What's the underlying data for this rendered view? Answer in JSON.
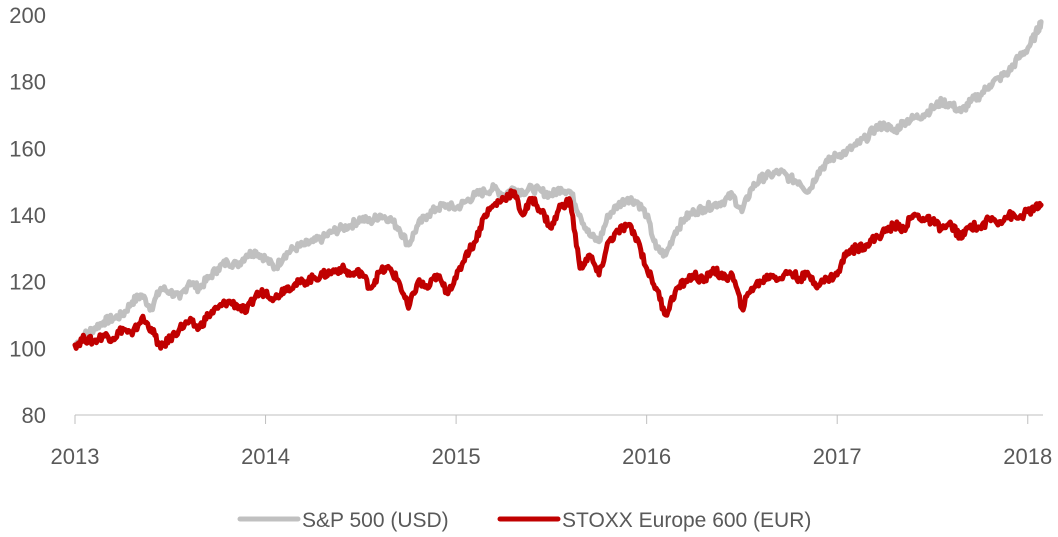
{
  "chart_data": {
    "type": "line",
    "title": "",
    "xlabel": "",
    "ylabel": "",
    "xlim": [
      2013,
      2018.08
    ],
    "ylim": [
      80,
      200
    ],
    "y_ticks": [
      80,
      100,
      120,
      140,
      160,
      180,
      200
    ],
    "x_ticks": [
      2013,
      2014,
      2015,
      2016,
      2017,
      2018
    ],
    "x_tick_labels": [
      "2013",
      "2014",
      "2015",
      "2016",
      "2017",
      "2018"
    ],
    "y_tick_labels": [
      "80",
      "100",
      "120",
      "140",
      "160",
      "180",
      "200"
    ],
    "grid": false,
    "legend_position": "bottom-center",
    "series": [
      {
        "name": "S&P 500 (USD)",
        "color": "#c0c0c0",
        "x": [
          2013.0,
          2013.05,
          2013.1,
          2013.15,
          2013.2,
          2013.25,
          2013.3,
          2013.35,
          2013.4,
          2013.45,
          2013.5,
          2013.55,
          2013.6,
          2013.65,
          2013.7,
          2013.75,
          2013.8,
          2013.85,
          2013.9,
          2013.95,
          2014.0,
          2014.05,
          2014.1,
          2014.15,
          2014.2,
          2014.25,
          2014.3,
          2014.35,
          2014.4,
          2014.45,
          2014.5,
          2014.55,
          2014.6,
          2014.65,
          2014.7,
          2014.75,
          2014.8,
          2014.85,
          2014.9,
          2014.95,
          2015.0,
          2015.05,
          2015.1,
          2015.15,
          2015.2,
          2015.25,
          2015.3,
          2015.35,
          2015.4,
          2015.45,
          2015.5,
          2015.55,
          2015.6,
          2015.65,
          2015.7,
          2015.75,
          2015.8,
          2015.85,
          2015.9,
          2015.95,
          2016.0,
          2016.05,
          2016.1,
          2016.15,
          2016.2,
          2016.25,
          2016.3,
          2016.35,
          2016.4,
          2016.45,
          2016.5,
          2016.55,
          2016.6,
          2016.65,
          2016.7,
          2016.75,
          2016.8,
          2016.85,
          2016.9,
          2016.95,
          2017.0,
          2017.05,
          2017.1,
          2017.15,
          2017.2,
          2017.25,
          2017.3,
          2017.35,
          2017.4,
          2017.45,
          2017.5,
          2017.55,
          2017.6,
          2017.65,
          2017.7,
          2017.75,
          2017.8,
          2017.85,
          2017.9,
          2017.95,
          2018.0,
          2018.04,
          2018.07
        ],
        "values": [
          101,
          104,
          106,
          108,
          109,
          110,
          114,
          116,
          112,
          118,
          117,
          115,
          120,
          118,
          121,
          124,
          126,
          125,
          128,
          129,
          127,
          124,
          128,
          130,
          131,
          132,
          133,
          135,
          136,
          137,
          139,
          138,
          140,
          139,
          136,
          131,
          137,
          140,
          142,
          143,
          142,
          144,
          146,
          147,
          148,
          146,
          148,
          147,
          148,
          147,
          146,
          148,
          147,
          140,
          134,
          132,
          140,
          143,
          145,
          144,
          140,
          130,
          128,
          135,
          139,
          141,
          142,
          143,
          144,
          146,
          141,
          148,
          151,
          152,
          153,
          151,
          150,
          147,
          153,
          156,
          158,
          159,
          161,
          163,
          166,
          167,
          165,
          168,
          169,
          170,
          172,
          174,
          173,
          171,
          174,
          176,
          179,
          181,
          183,
          187,
          190,
          194,
          198
        ]
      },
      {
        "name": "STOXX Europe 600 (EUR)",
        "color": "#c00000",
        "x": [
          2013.0,
          2013.05,
          2013.1,
          2013.15,
          2013.2,
          2013.25,
          2013.3,
          2013.35,
          2013.4,
          2013.45,
          2013.5,
          2013.55,
          2013.6,
          2013.65,
          2013.7,
          2013.75,
          2013.8,
          2013.85,
          2013.9,
          2013.95,
          2014.0,
          2014.05,
          2014.1,
          2014.15,
          2014.2,
          2014.25,
          2014.3,
          2014.35,
          2014.4,
          2014.45,
          2014.5,
          2014.55,
          2014.6,
          2014.65,
          2014.7,
          2014.75,
          2014.8,
          2014.85,
          2014.9,
          2014.95,
          2015.0,
          2015.05,
          2015.1,
          2015.15,
          2015.2,
          2015.25,
          2015.3,
          2015.35,
          2015.4,
          2015.45,
          2015.5,
          2015.55,
          2015.6,
          2015.65,
          2015.7,
          2015.75,
          2015.8,
          2015.85,
          2015.9,
          2015.95,
          2016.0,
          2016.05,
          2016.1,
          2016.15,
          2016.2,
          2016.25,
          2016.3,
          2016.35,
          2016.4,
          2016.45,
          2016.5,
          2016.55,
          2016.6,
          2016.65,
          2016.7,
          2016.75,
          2016.8,
          2016.85,
          2016.9,
          2016.95,
          2017.0,
          2017.05,
          2017.1,
          2017.15,
          2017.2,
          2017.25,
          2017.3,
          2017.35,
          2017.4,
          2017.45,
          2017.5,
          2017.55,
          2017.6,
          2017.65,
          2017.7,
          2017.75,
          2017.8,
          2017.85,
          2017.9,
          2017.95,
          2018.0,
          2018.04,
          2018.07
        ],
        "values": [
          101,
          103,
          102,
          104,
          103,
          106,
          104,
          109,
          106,
          100,
          103,
          106,
          108,
          106,
          110,
          112,
          114,
          113,
          111,
          116,
          117,
          115,
          118,
          119,
          120,
          121,
          122,
          123,
          124,
          122,
          123,
          118,
          123,
          124,
          120,
          112,
          120,
          118,
          122,
          117,
          121,
          128,
          132,
          140,
          143,
          145,
          147,
          140,
          145,
          141,
          136,
          143,
          144,
          124,
          128,
          122,
          132,
          135,
          137,
          133,
          124,
          118,
          110,
          117,
          120,
          122,
          120,
          124,
          121,
          122,
          112,
          118,
          120,
          122,
          121,
          123,
          121,
          122,
          119,
          121,
          122,
          129,
          130,
          131,
          133,
          135,
          137,
          136,
          140,
          139,
          138,
          136,
          137,
          133,
          137,
          136,
          139,
          138,
          140,
          139,
          141,
          142,
          143
        ]
      }
    ]
  }
}
